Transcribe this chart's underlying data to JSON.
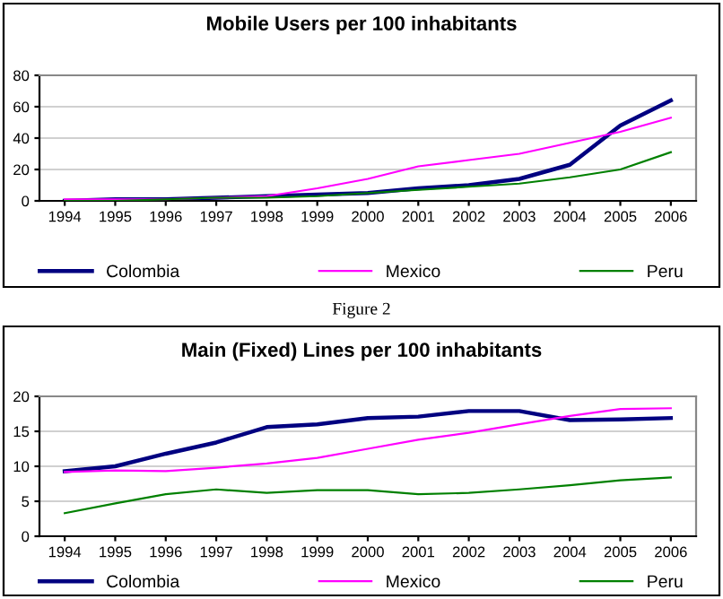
{
  "chart_data": [
    {
      "type": "line",
      "title": "Mobile Users per 100 inhabitants",
      "categories": [
        "1994",
        "1995",
        "1996",
        "1997",
        "1998",
        "1999",
        "2000",
        "2001",
        "2002",
        "2003",
        "2004",
        "2005",
        "2006"
      ],
      "series": [
        {
          "name": "Colombia",
          "color": "#000080",
          "values": [
            0,
            1,
            1,
            2,
            3,
            4,
            5,
            8,
            10,
            14,
            23,
            48,
            64
          ]
        },
        {
          "name": "Mexico",
          "color": "#ff00ff",
          "values": [
            1,
            1,
            1,
            2,
            3,
            8,
            14,
            22,
            26,
            30,
            37,
            44,
            53
          ]
        },
        {
          "name": "Peru",
          "color": "#008000",
          "values": [
            0,
            0,
            1,
            2,
            2,
            3,
            5,
            7,
            9,
            11,
            15,
            20,
            31
          ]
        }
      ],
      "ylim": [
        0,
        80
      ],
      "yticks": [
        0,
        20,
        40,
        60,
        80
      ],
      "grid": "y",
      "legend": "bottom",
      "marker": "none",
      "annotations": [
        "Figure 2"
      ]
    },
    {
      "type": "line",
      "title": "Main (Fixed) Lines per 100 inhabitants",
      "categories": [
        "1994",
        "1995",
        "1996",
        "1997",
        "1998",
        "1999",
        "2000",
        "2001",
        "2002",
        "2003",
        "2004",
        "2005",
        "2006"
      ],
      "series": [
        {
          "name": "Colombia",
          "color": "#000080",
          "values": [
            9.3,
            10,
            11.8,
            13.4,
            15.6,
            16,
            16.9,
            17.1,
            17.9,
            17.9,
            16.6,
            16.7,
            16.9
          ]
        },
        {
          "name": "Mexico",
          "color": "#ff00ff",
          "values": [
            9.2,
            9.4,
            9.3,
            9.8,
            10.4,
            11.2,
            12.5,
            13.8,
            14.8,
            16,
            17.2,
            18.2,
            18.3
          ]
        },
        {
          "name": "Peru",
          "color": "#008000",
          "values": [
            3.3,
            4.7,
            6,
            6.7,
            6.2,
            6.6,
            6.6,
            6,
            6.2,
            6.7,
            7.3,
            8,
            8.4
          ]
        }
      ],
      "ylim": [
        0,
        20
      ],
      "yticks": [
        0,
        5,
        10,
        15,
        20
      ],
      "grid": "y",
      "legend": "bottom",
      "marker": "none"
    }
  ]
}
